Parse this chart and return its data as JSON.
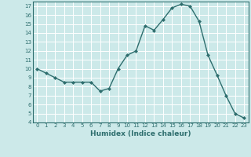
{
  "x": [
    0,
    1,
    2,
    3,
    4,
    5,
    6,
    7,
    8,
    9,
    10,
    11,
    12,
    13,
    14,
    15,
    16,
    17,
    18,
    19,
    20,
    21,
    22,
    23
  ],
  "y": [
    10.0,
    9.5,
    9.0,
    8.5,
    8.5,
    8.5,
    8.5,
    7.5,
    7.8,
    10.0,
    11.5,
    12.0,
    14.8,
    14.3,
    15.5,
    16.8,
    17.2,
    17.0,
    15.3,
    11.5,
    9.3,
    7.0,
    5.0,
    4.5
  ],
  "xlabel": "Humidex (Indice chaleur)",
  "ylim": [
    4,
    17.5
  ],
  "xlim": [
    -0.5,
    23.5
  ],
  "yticks": [
    4,
    5,
    6,
    7,
    8,
    9,
    10,
    11,
    12,
    13,
    14,
    15,
    16,
    17
  ],
  "xticks": [
    0,
    1,
    2,
    3,
    4,
    5,
    6,
    7,
    8,
    9,
    10,
    11,
    12,
    13,
    14,
    15,
    16,
    17,
    18,
    19,
    20,
    21,
    22,
    23
  ],
  "line_color": "#2e6e6e",
  "marker": "D",
  "marker_size": 2.0,
  "bg_color": "#cce9e9",
  "grid_color": "#ffffff",
  "fig_bg": "#cce9e9",
  "tick_fontsize": 5.0,
  "xlabel_fontsize": 6.5,
  "linewidth": 1.0
}
